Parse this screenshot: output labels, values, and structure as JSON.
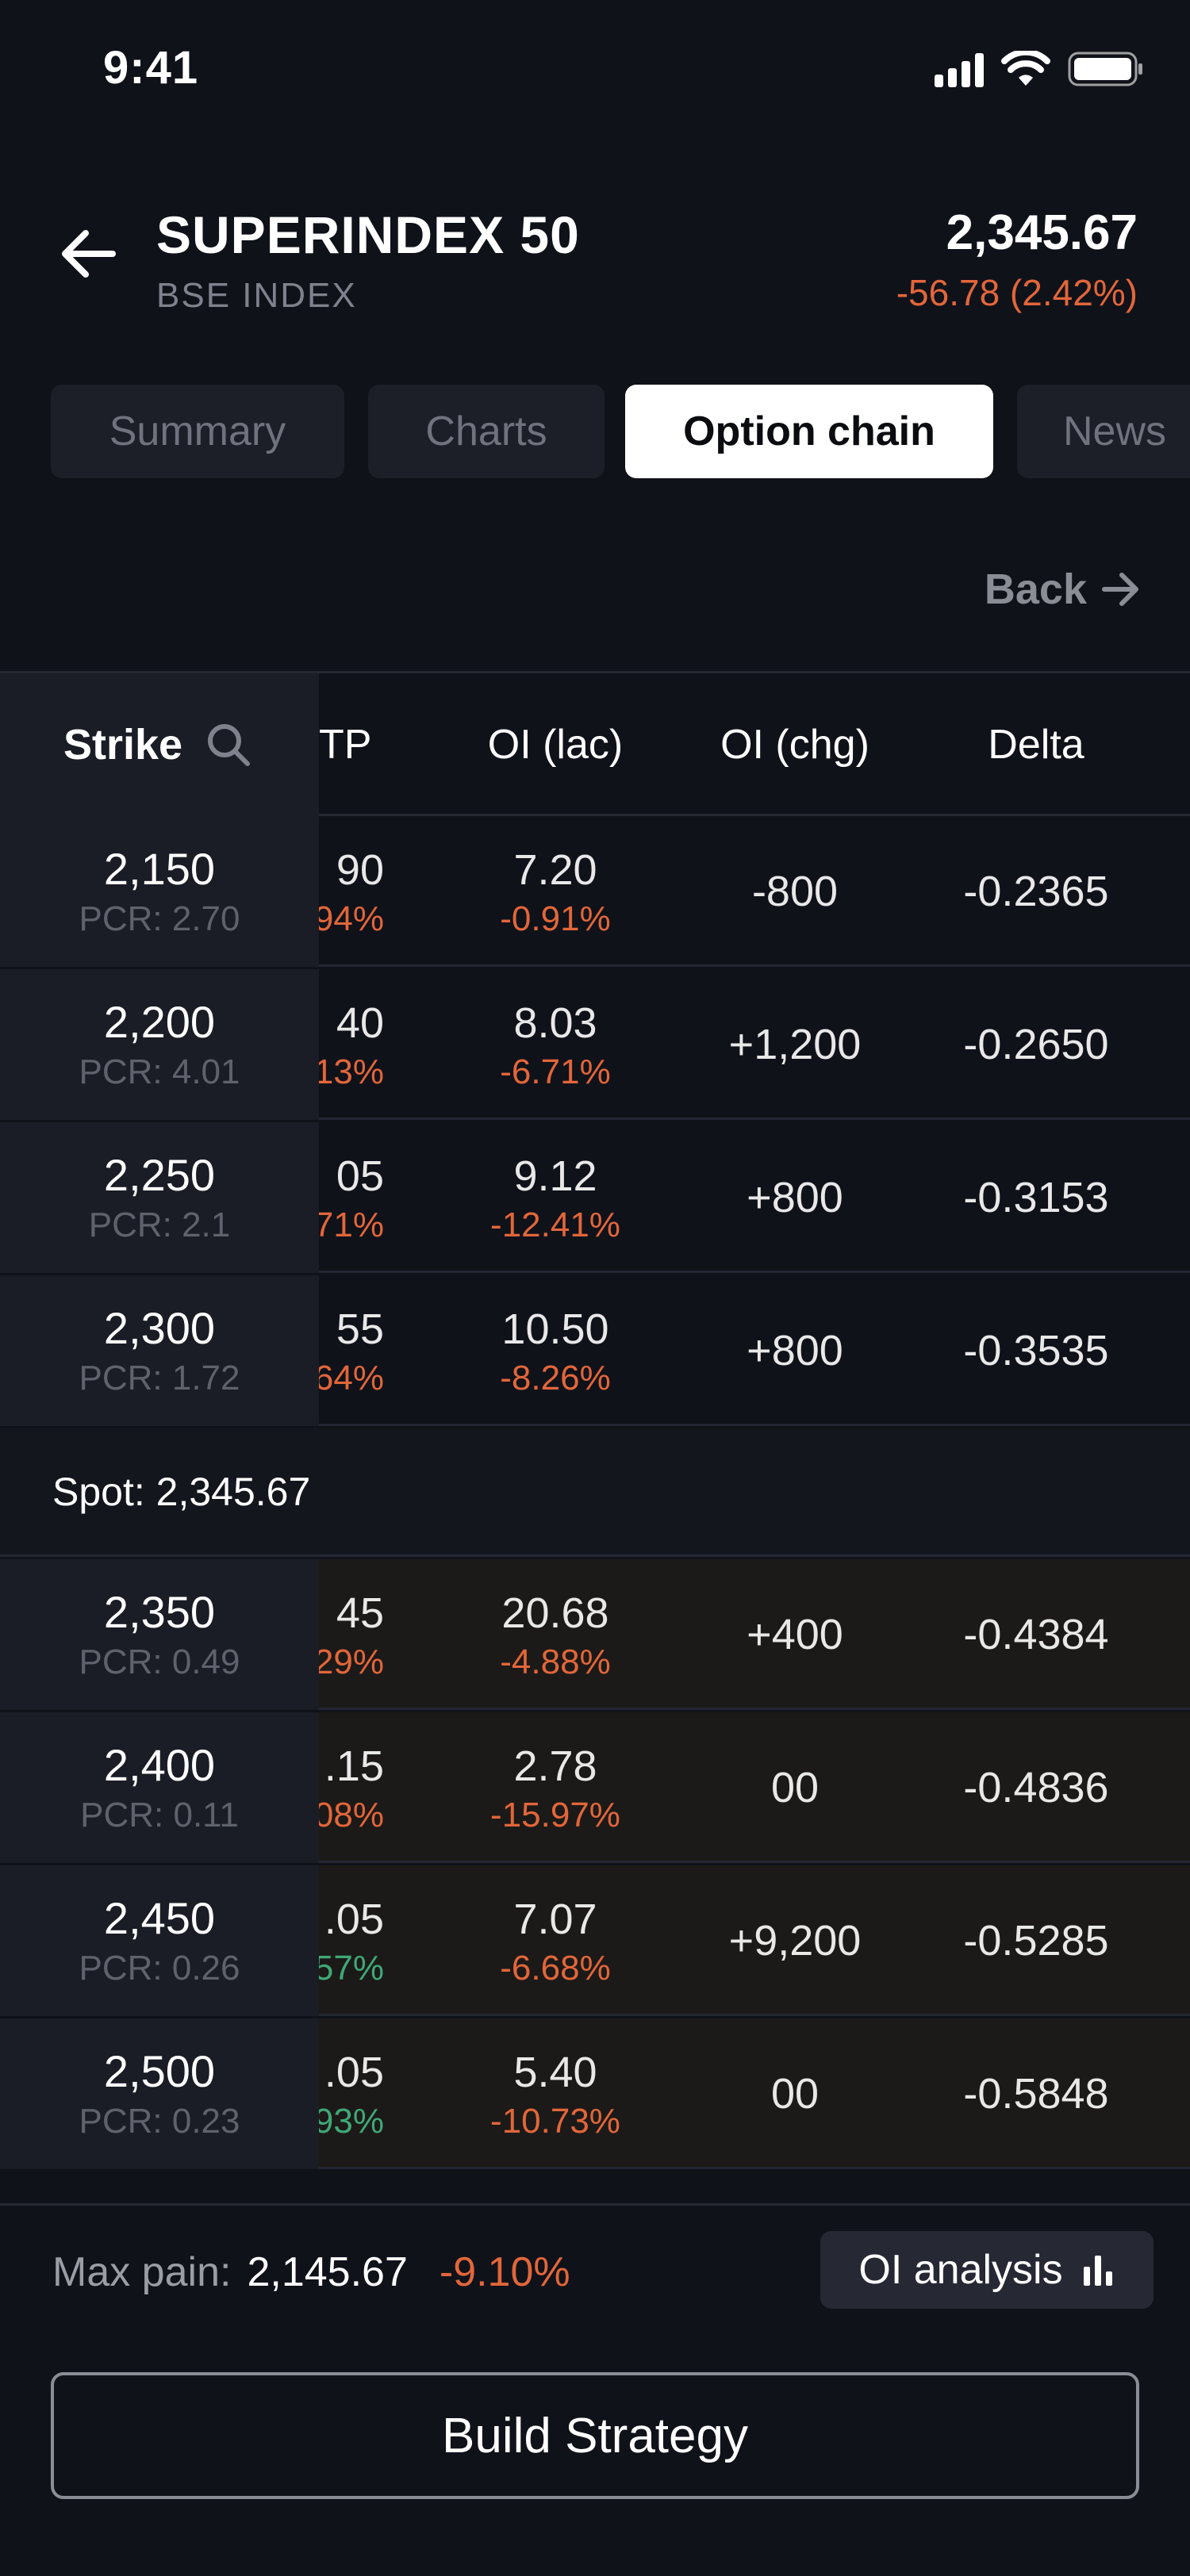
{
  "status_bar": {
    "time": "9:41"
  },
  "header": {
    "title": "SUPERINDEX 50",
    "subtitle": "BSE INDEX",
    "price": "2,345.67",
    "change": "-56.78 (2.42%)"
  },
  "tabs": [
    {
      "label": "Summary",
      "active": false
    },
    {
      "label": "Charts",
      "active": false
    },
    {
      "label": "Option chain",
      "active": true
    },
    {
      "label": "News",
      "active": false
    }
  ],
  "back_link": {
    "label": "Back"
  },
  "table": {
    "columns": {
      "strike": "Strike",
      "ltp": "TP",
      "oi": "OI (lac)",
      "oi_chg": "OI (chg)",
      "delta": "Delta"
    },
    "rows_above_spot": [
      {
        "strike": "2,150",
        "pcr": "PCR: 2.70",
        "ltp": "90",
        "ltp_chg": "94%",
        "ltp_up": false,
        "oi": "7.20",
        "oi_pct": "-0.91%",
        "oi_chg": "-800",
        "delta": "-0.2365"
      },
      {
        "strike": "2,200",
        "pcr": "PCR: 4.01",
        "ltp": "40",
        "ltp_chg": "13%",
        "ltp_up": false,
        "oi": "8.03",
        "oi_pct": "-6.71%",
        "oi_chg": "+1,200",
        "delta": "-0.2650"
      },
      {
        "strike": "2,250",
        "pcr": "PCR: 2.1",
        "ltp": "05",
        "ltp_chg": "71%",
        "ltp_up": false,
        "oi": "9.12",
        "oi_pct": "-12.41%",
        "oi_chg": "+800",
        "delta": "-0.3153"
      },
      {
        "strike": "2,300",
        "pcr": "PCR: 1.72",
        "ltp": "55",
        "ltp_chg": "64%",
        "ltp_up": false,
        "oi": "10.50",
        "oi_pct": "-8.26%",
        "oi_chg": "+800",
        "delta": "-0.3535"
      }
    ],
    "spot": "Spot: 2,345.67",
    "rows_below_spot": [
      {
        "strike": "2,350",
        "pcr": "PCR: 0.49",
        "ltp": "45",
        "ltp_chg": "29%",
        "ltp_up": false,
        "oi": "20.68",
        "oi_pct": "-4.88%",
        "oi_chg": "+400",
        "delta": "-0.4384"
      },
      {
        "strike": "2,400",
        "pcr": "PCR: 0.11",
        "ltp": ".15",
        "ltp_chg": "08%",
        "ltp_up": false,
        "oi": "2.78",
        "oi_pct": "-15.97%",
        "oi_chg": "00",
        "delta": "-0.4836"
      },
      {
        "strike": "2,450",
        "pcr": "PCR: 0.26",
        "ltp": ".05",
        "ltp_chg": "57%",
        "ltp_up": true,
        "oi": "7.07",
        "oi_pct": "-6.68%",
        "oi_chg": "+9,200",
        "delta": "-0.5285"
      },
      {
        "strike": "2,500",
        "pcr": "PCR: 0.23",
        "ltp": ".05",
        "ltp_chg": "93%",
        "ltp_up": true,
        "oi": "5.40",
        "oi_pct": "-10.73%",
        "oi_chg": "00",
        "delta": "-0.5848"
      }
    ]
  },
  "footer": {
    "max_pain_label": "Max pain:",
    "max_pain_value": "2,145.67",
    "max_pain_change": "-9.10%",
    "oi_analysis_label": "OI analysis",
    "build_strategy_label": "Build Strategy"
  },
  "colors": {
    "negative": "#e2663a",
    "positive": "#3fa877",
    "background": "#10121a"
  }
}
